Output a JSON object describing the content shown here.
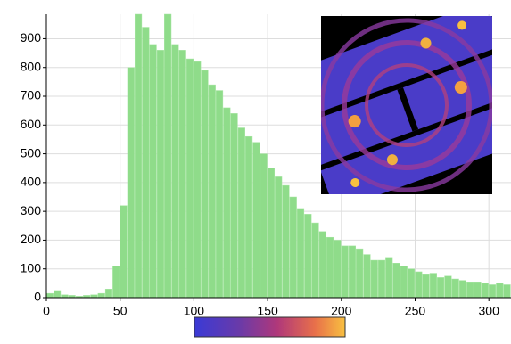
{
  "chart_data": {
    "type": "histogram",
    "bins": [
      0,
      5,
      10,
      15,
      20,
      25,
      30,
      35,
      40,
      45,
      50,
      55,
      60,
      65,
      70,
      75,
      80,
      85,
      90,
      95,
      100,
      105,
      110,
      115,
      120,
      125,
      130,
      135,
      140,
      145,
      150,
      155,
      160,
      165,
      170,
      175,
      180,
      185,
      190,
      195,
      200,
      205,
      210,
      215,
      220,
      225,
      230,
      235,
      240,
      245,
      250,
      255,
      260,
      265,
      270,
      275,
      280,
      285,
      290,
      295,
      300,
      305,
      310,
      315
    ],
    "values": [
      15,
      25,
      10,
      8,
      5,
      8,
      10,
      15,
      30,
      110,
      320,
      800,
      990,
      940,
      880,
      860,
      990,
      880,
      860,
      830,
      820,
      790,
      740,
      720,
      660,
      640,
      590,
      560,
      540,
      500,
      450,
      420,
      390,
      350,
      310,
      290,
      260,
      230,
      210,
      200,
      180,
      180,
      170,
      150,
      130,
      130,
      140,
      120,
      110,
      100,
      90,
      80,
      85,
      70,
      75,
      65,
      60,
      55,
      55,
      50,
      45,
      50,
      45
    ],
    "color": "#8fdc8a",
    "xlim": [
      0,
      315
    ],
    "ylim": [
      0,
      985
    ],
    "xticks": [
      0,
      50,
      100,
      150,
      200,
      250,
      300
    ],
    "yticks": [
      0,
      100,
      200,
      300,
      400,
      500,
      600,
      700,
      800,
      900
    ],
    "grid": true
  }
}
